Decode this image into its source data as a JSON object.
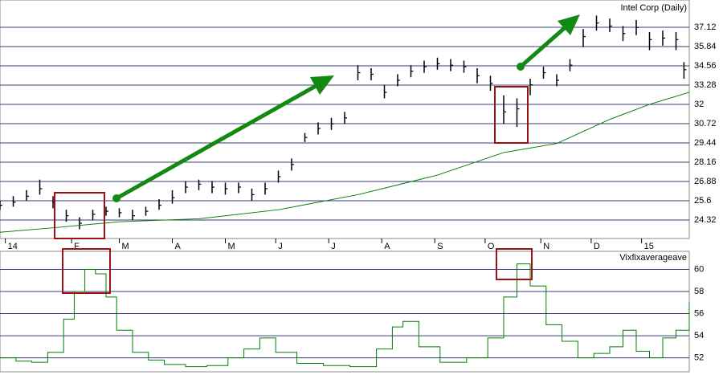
{
  "chart_data": [
    {
      "type": "ohlc",
      "title": "Intel Corp (Daily)",
      "color": "#000000",
      "x": [
        0,
        5,
        10,
        15,
        20,
        25,
        30,
        35,
        40,
        45,
        50,
        55,
        60,
        65,
        70,
        75,
        80,
        85,
        90,
        95,
        100,
        105,
        110,
        115,
        120,
        125,
        130,
        135,
        140,
        145,
        150,
        155,
        160,
        165,
        170,
        175,
        180,
        185,
        190,
        195,
        200,
        205,
        210,
        215,
        220,
        225,
        230,
        235,
        240,
        245,
        250,
        255,
        258
      ],
      "high": [
        25.6,
        25.9,
        26.3,
        27.0,
        25.9,
        25.0,
        24.5,
        25.0,
        25.2,
        25.1,
        25.0,
        25.2,
        25.7,
        26.3,
        26.9,
        27.0,
        26.9,
        26.8,
        26.8,
        26.4,
        26.8,
        27.6,
        28.4,
        30.1,
        30.8,
        31.1,
        31.5,
        34.6,
        34.4,
        33.3,
        34.0,
        34.6,
        34.9,
        35.1,
        35.0,
        34.9,
        34.4,
        33.9,
        32.6,
        32.4,
        33.7,
        34.5,
        34.0,
        35.0,
        37.0,
        37.9,
        37.7,
        37.2,
        37.6,
        36.8,
        36.9,
        36.8,
        34.8
      ],
      "low": [
        25.0,
        25.2,
        25.6,
        26.0,
        25.1,
        24.2,
        23.7,
        24.3,
        24.6,
        24.5,
        24.3,
        24.6,
        25.0,
        25.4,
        26.1,
        26.3,
        26.1,
        26.0,
        26.1,
        25.6,
        26.0,
        26.8,
        27.6,
        29.5,
        30.0,
        30.3,
        30.7,
        33.6,
        33.6,
        32.4,
        33.2,
        33.8,
        34.1,
        34.3,
        34.2,
        34.1,
        33.4,
        32.9,
        30.7,
        30.5,
        32.6,
        33.7,
        33.2,
        34.2,
        35.8,
        36.9,
        36.8,
        36.2,
        36.6,
        35.6,
        35.9,
        35.6,
        33.7
      ],
      "close": [
        25.3,
        25.5,
        25.9,
        26.4,
        25.5,
        24.6,
        24.1,
        24.7,
        24.9,
        24.8,
        24.6,
        24.9,
        25.3,
        25.8,
        26.5,
        26.7,
        26.5,
        26.4,
        26.5,
        26.0,
        26.4,
        27.2,
        28.0,
        29.8,
        30.4,
        30.7,
        31.1,
        34.1,
        34.0,
        32.8,
        33.6,
        34.2,
        34.5,
        34.7,
        34.6,
        34.5,
        33.9,
        33.4,
        31.5,
        31.7,
        33.3,
        34.1,
        33.6,
        34.6,
        36.5,
        37.4,
        37.2,
        36.7,
        37.1,
        36.3,
        36.4,
        36.3,
        34.3
      ],
      "overlay": {
        "type": "line",
        "color": "#008000",
        "x": [
          0,
          20,
          45,
          75,
          105,
          135,
          165,
          190,
          210,
          230,
          245,
          260
        ],
        "values": [
          23.5,
          23.8,
          24.2,
          24.4,
          25.0,
          26.0,
          27.3,
          28.8,
          29.4,
          31.0,
          32.0,
          32.8
        ]
      },
      "xlim": [
        0,
        260
      ],
      "xticks": [
        {
          "value": 2,
          "label": "14"
        },
        {
          "value": 27,
          "label": "F"
        },
        {
          "value": 45,
          "label": "M"
        },
        {
          "value": 65,
          "label": "A"
        },
        {
          "value": 85,
          "label": "M"
        },
        {
          "value": 104,
          "label": "J"
        },
        {
          "value": 124,
          "label": "J"
        },
        {
          "value": 144,
          "label": "A"
        },
        {
          "value": 164,
          "label": "S"
        },
        {
          "value": 183,
          "label": "O"
        },
        {
          "value": 204,
          "label": "N"
        },
        {
          "value": 223,
          "label": "D"
        },
        {
          "value": 242,
          "label": "15"
        }
      ],
      "ylim": [
        23.09,
        38.93
      ],
      "yticks": [
        24.32,
        25.6,
        26.88,
        28.16,
        29.44,
        30.72,
        32,
        33.28,
        34.56,
        35.84,
        37.12
      ],
      "grid": true
    },
    {
      "type": "line",
      "title": "Vixfixaverageave",
      "color": "#008000",
      "step": true,
      "x": [
        0,
        6,
        12,
        18,
        24,
        28,
        32,
        36,
        40,
        44,
        50,
        56,
        62,
        70,
        78,
        86,
        92,
        98,
        104,
        112,
        122,
        132,
        142,
        148,
        152,
        158,
        166,
        176,
        184,
        190,
        195,
        200,
        206,
        212,
        218,
        224,
        230,
        235,
        240,
        245,
        250,
        255,
        260
      ],
      "values": [
        52.0,
        51.7,
        51.6,
        52.5,
        55.5,
        58.0,
        60.0,
        59.6,
        57.5,
        54.5,
        52.5,
        51.8,
        51.4,
        51.2,
        51.3,
        52.0,
        52.8,
        53.8,
        52.5,
        51.5,
        51.3,
        51.2,
        52.8,
        54.8,
        55.3,
        53.0,
        51.6,
        52.0,
        53.8,
        57.5,
        60.5,
        58.5,
        55.0,
        53.5,
        52.0,
        52.4,
        53.0,
        54.5,
        52.6,
        52.0,
        53.8,
        54.5,
        57.0
      ],
      "xlim": [
        0,
        260
      ],
      "ylim": [
        50.74,
        61.63
      ],
      "yticks": [
        52,
        54,
        56,
        58,
        60
      ],
      "grid": true
    }
  ]
}
